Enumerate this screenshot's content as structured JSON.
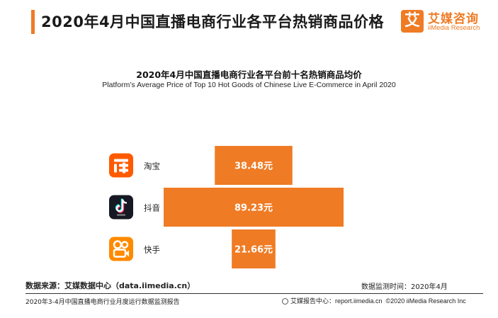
{
  "header": {
    "title": "2020年4月中国直播电商行业各平台热销商品价格",
    "accent_color": "#ef7b24"
  },
  "brand": {
    "logo_char": "艾",
    "name_cn": "艾媒咨询",
    "name_en": "iiMedia Research"
  },
  "chart_data": {
    "type": "bar",
    "orientation": "horizontal-centered",
    "title": "2020年4月中国直播电商行业各平台前十名热销商品均价",
    "subtitle": "Platform’s Average Price of Top 10 Hot Goods of Chinese Live E-Commerce in April 2020",
    "categories": [
      "淘宝",
      "抖音",
      "快手"
    ],
    "values": [
      38.48,
      89.23,
      21.66
    ],
    "value_labels": [
      "38.48元",
      "89.23元",
      "21.66元"
    ],
    "icons": [
      "taobao-icon",
      "douyin-icon",
      "kuaishou-icon"
    ],
    "bar_color": "#ef7b24",
    "xlabel": "",
    "ylabel": "",
    "grid": false,
    "legend": "none"
  },
  "footer": {
    "source": "数据来源：艾媒数据中心（data.iimedia.cn）",
    "monitor_date": "数据监测时间：2020年4月",
    "report_name": "2020年3-4月中国直播电商行业月度运行数据监测报告",
    "report_site": "艾媒报告中心：report.iimedia.cn",
    "copyright": "©2020  iiMedia Research  Inc"
  }
}
